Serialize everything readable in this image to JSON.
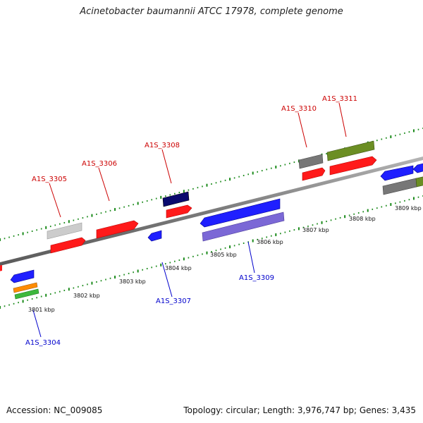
{
  "title": "Acinetobacter baumannii ATCC 17978, complete genome",
  "footer": {
    "accession": "Accession: NC_009085",
    "summary": "Topology: circular; Length: 3,976,747 bp; Genes: 3,435"
  },
  "axis": {
    "unit": "kbp",
    "labels": [
      "3801 kbp",
      "3802 kbp",
      "3803 kbp",
      "3804 kbp",
      "3805 kbp",
      "3806 kbp",
      "3807 kbp",
      "3808 kbp",
      "3809 kbp"
    ]
  },
  "strand_colors": {
    "forward_label": "#cc0000",
    "reverse_label": "#0000cc",
    "backbone": "#8a8a8a",
    "ticks": "#1a8a1a"
  },
  "genes_forward": [
    {
      "label": "A1S_3305",
      "color": "#cc0000"
    },
    {
      "label": "A1S_3306",
      "color": "#cc0000"
    },
    {
      "label": "A1S_3308",
      "color": "#cc0000"
    },
    {
      "label": "A1S_3310",
      "color": "#cc0000"
    },
    {
      "label": "A1S_3311",
      "color": "#cc0000"
    }
  ],
  "genes_reverse": [
    {
      "label": "A1S_3304",
      "color": "#0000cc"
    },
    {
      "label": "A1S_3307",
      "color": "#0000cc"
    },
    {
      "label": "A1S_3309",
      "color": "#0000cc"
    }
  ],
  "feature_colors": {
    "red": "#ff1a1a",
    "blue": "#1f1fff",
    "navy": "#0a0a6e",
    "grey": "#8c8c8c",
    "lightgrey": "#c8c8c8",
    "olive": "#6b8e23",
    "purple": "#7b68d6",
    "orange": "#ff8c00",
    "green": "#3cb83c"
  }
}
